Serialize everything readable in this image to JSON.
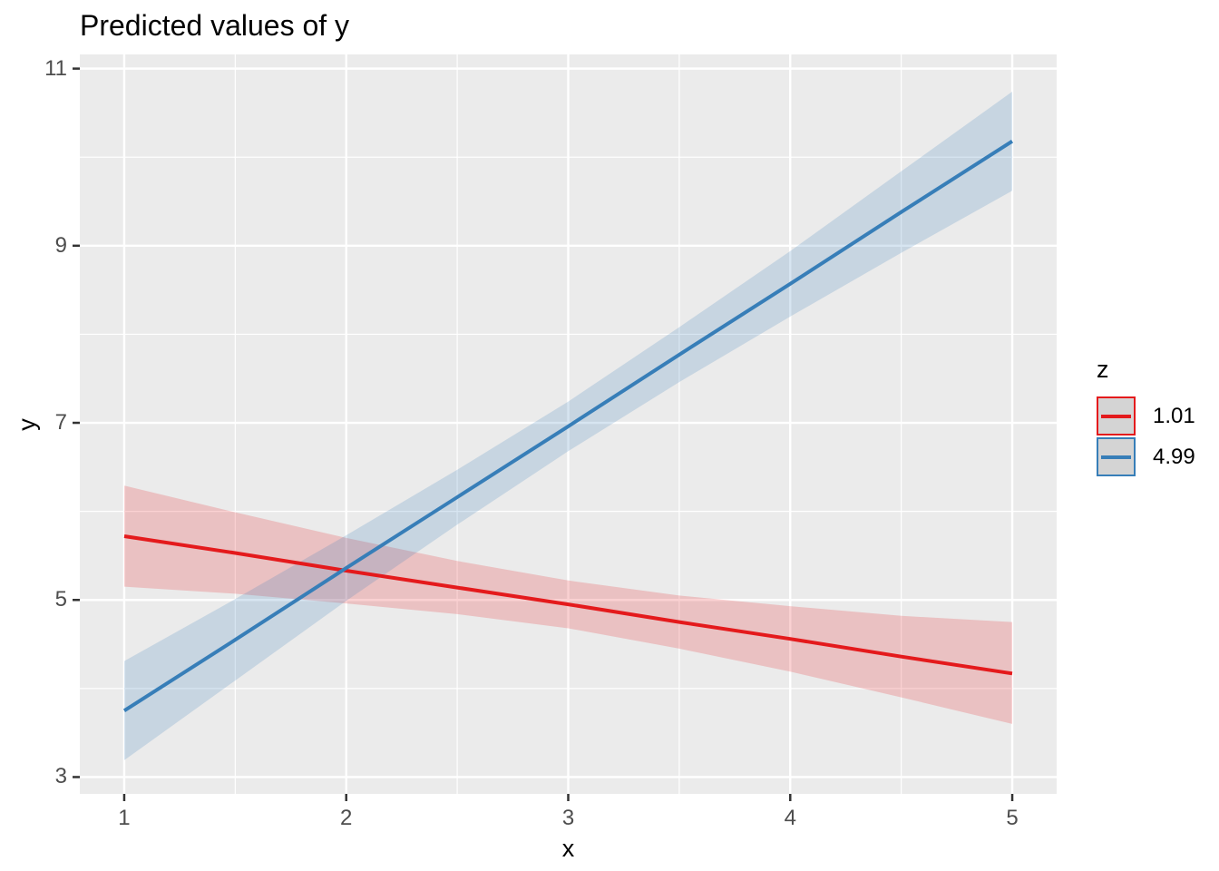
{
  "title": "Predicted values of y",
  "colors": {
    "panel_bg": "#EBEBEB",
    "grid": "#FFFFFF",
    "tick_mark": "#333333",
    "tick_label": "#4D4D4D",
    "legend_key_fill": "#D4D4D4",
    "red": "#E41A1C",
    "blue": "#377EB8"
  },
  "chart_data": {
    "type": "line",
    "title": "Predicted values of y",
    "xlabel": "x",
    "ylabel": "y",
    "xlim": [
      0.8,
      5.2
    ],
    "ylim": [
      2.81,
      11.16
    ],
    "x_ticks": [
      1,
      2,
      3,
      4,
      5
    ],
    "x_minor_ticks": [
      1.5,
      2.5,
      3.5,
      4.5
    ],
    "y_ticks": [
      3,
      5,
      7,
      9,
      11
    ],
    "y_minor_ticks": [
      4,
      6,
      8,
      10
    ],
    "grid": true,
    "legend": {
      "title": "z",
      "position": "right"
    },
    "x": [
      1,
      1.5,
      2,
      2.5,
      3,
      3.5,
      4,
      4.5,
      5
    ],
    "series": [
      {
        "name": "1.01",
        "color": "#E41A1C",
        "ribbon_alpha": 0.2,
        "values": [
          5.72,
          5.53,
          5.33,
          5.14,
          4.95,
          4.75,
          4.56,
          4.36,
          4.17
        ],
        "ci_lower": [
          5.15,
          5.07,
          4.96,
          4.84,
          4.68,
          4.45,
          4.19,
          3.9,
          3.6
        ],
        "ci_upper": [
          6.29,
          5.99,
          5.7,
          5.44,
          5.22,
          5.05,
          4.93,
          4.82,
          4.75
        ]
      },
      {
        "name": "4.99",
        "color": "#377EB8",
        "ribbon_alpha": 0.2,
        "values": [
          3.75,
          4.55,
          5.36,
          6.16,
          6.96,
          7.77,
          8.57,
          9.38,
          10.18
        ],
        "ci_lower": [
          3.19,
          4.09,
          4.99,
          5.85,
          6.68,
          7.46,
          8.2,
          8.92,
          9.62
        ],
        "ci_upper": [
          4.31,
          5.01,
          5.73,
          6.47,
          7.24,
          8.08,
          8.94,
          9.84,
          10.74
        ]
      }
    ]
  }
}
